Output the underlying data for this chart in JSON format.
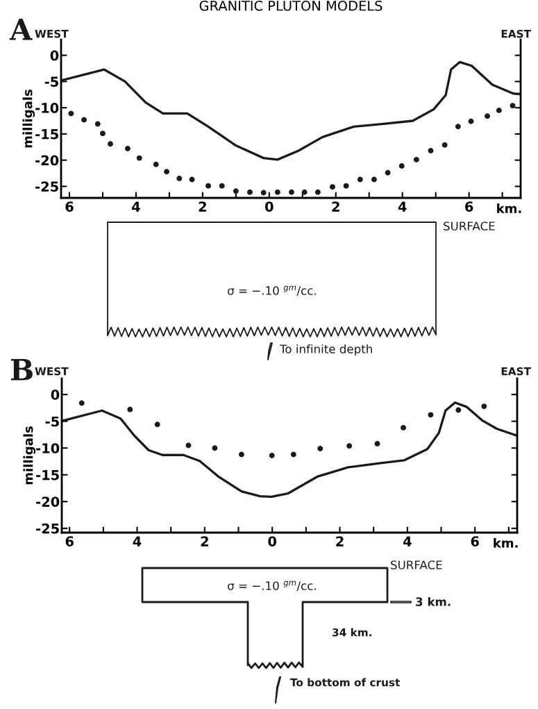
{
  "chart_data": [
    {
      "type": "line",
      "title": "GRANITIC PLUTON MODELS",
      "ylabel": "milligals",
      "xlabel": "km.",
      "annotations": [
        "A",
        "WEST",
        "EAST",
        "SURFACE",
        "σ = −.10 $^{gm}$/cc.",
        "To infinite depth"
      ],
      "xlim": [
        -6.25,
        7.55
      ],
      "ylim": [
        -27.2,
        3
      ],
      "xticks": [
        {
          "value": -6,
          "label": "6"
        },
        {
          "value": -5,
          "label": null
        },
        {
          "value": -4,
          "label": "4"
        },
        {
          "value": -3,
          "label": null
        },
        {
          "value": -2,
          "label": "2"
        },
        {
          "value": -1,
          "label": null
        },
        0,
        {
          "value": 1,
          "label": null
        },
        2,
        {
          "value": 3,
          "label": null
        },
        4,
        {
          "value": 5,
          "label": null
        },
        6,
        {
          "value": 7,
          "label": null
        }
      ],
      "yticks": [
        0,
        -5,
        -10,
        -15,
        -20,
        -25
      ],
      "series": [
        {
          "color": "#1a1a1a",
          "line_style": "solid",
          "marker": "none",
          "x": [
            -6.25,
            -4.96,
            -4.33,
            -3.71,
            -3.19,
            -2.46,
            -1.83,
            -1.0,
            -0.17,
            0.25,
            0.88,
            1.6,
            2.54,
            3.38,
            4.31,
            4.94,
            5.3,
            5.46,
            5.72,
            6.08,
            6.7,
            7.33,
            7.54
          ],
          "values": [
            -4.8,
            -2.7,
            -5.0,
            -9.0,
            -11.1,
            -11.1,
            -13.6,
            -17.2,
            -19.6,
            -19.9,
            -18.2,
            -15.6,
            -13.6,
            -13.1,
            -12.5,
            -10.3,
            -7.6,
            -2.7,
            -1.3,
            -2.0,
            -5.6,
            -7.3,
            -7.4
          ]
        },
        {
          "type": "scatter",
          "color": "#1a1a1a",
          "marker": "circle",
          "x": [
            -5.95,
            -5.56,
            -5.15,
            -5.0,
            -4.77,
            -4.25,
            -3.9,
            -3.4,
            -3.08,
            -2.7,
            -2.32,
            -1.83,
            -1.42,
            -1.0,
            -0.58,
            -0.17,
            0.25,
            0.67,
            1.06,
            1.46,
            1.9,
            2.31,
            2.73,
            3.15,
            3.56,
            3.98,
            4.42,
            4.85,
            5.27,
            5.67,
            6.06,
            6.55,
            6.9,
            7.31
          ],
          "values": [
            -11.1,
            -12.3,
            -13.1,
            -14.9,
            -16.9,
            -17.8,
            -19.6,
            -20.8,
            -22.2,
            -23.5,
            -23.7,
            -24.9,
            -24.9,
            -25.9,
            -26.1,
            -26.2,
            -26.1,
            -26.1,
            -26.1,
            -26.1,
            -25.1,
            -24.9,
            -23.7,
            -23.7,
            -22.4,
            -21.1,
            -19.9,
            -18.2,
            -17.1,
            -13.6,
            -12.6,
            -11.6,
            -10.5,
            -9.6
          ]
        }
      ]
    },
    {
      "type": "line",
      "ylabel": "milligals",
      "xlabel": "km.",
      "annotations": [
        "B",
        "WEST",
        "EAST",
        "SURFACE",
        "σ = −.10 $^{gm}$/cc.",
        "3 km.",
        "34 km.",
        "To bottom of crust"
      ],
      "xlim": [
        -6.23,
        7.25
      ],
      "ylim": [
        -25.8,
        3
      ],
      "xticks": [
        {
          "value": -6,
          "label": "6"
        },
        {
          "value": -5,
          "label": null
        },
        {
          "value": -4,
          "label": "4"
        },
        {
          "value": -3,
          "label": null
        },
        {
          "value": -2,
          "label": "2"
        },
        {
          "value": -1,
          "label": null
        },
        0,
        {
          "value": 1,
          "label": null
        },
        2,
        {
          "value": 3,
          "label": null
        },
        4,
        {
          "value": 5,
          "label": null
        },
        6,
        {
          "value": 7,
          "label": null
        }
      ],
      "yticks": [
        0,
        -5,
        -10,
        -15,
        -20,
        -25
      ],
      "series": [
        {
          "color": "#1a1a1a",
          "line_style": "solid",
          "marker": "none",
          "x": [
            -6.2,
            -5.04,
            -4.49,
            -4.08,
            -3.66,
            -3.25,
            -2.63,
            -2.15,
            -1.6,
            -0.91,
            -0.36,
            -0.02,
            0.46,
            1.35,
            2.25,
            3.21,
            3.9,
            4.59,
            4.93,
            5.13,
            5.41,
            5.75,
            6.23,
            6.65,
            7.25
          ],
          "values": [
            -4.9,
            -3.0,
            -4.5,
            -7.7,
            -10.4,
            -11.3,
            -11.3,
            -12.4,
            -15.3,
            -18.1,
            -19.0,
            -19.1,
            -18.5,
            -15.3,
            -13.6,
            -12.8,
            -12.3,
            -10.2,
            -7.2,
            -3.0,
            -1.5,
            -2.3,
            -4.9,
            -6.4,
            -7.7
          ]
        },
        {
          "type": "scatter",
          "color": "#1a1a1a",
          "marker": "circle",
          "x": [
            -5.64,
            -4.21,
            -3.4,
            -2.48,
            -1.7,
            -0.91,
            -0.01,
            0.63,
            1.42,
            2.28,
            3.11,
            3.88,
            4.69,
            5.51,
            6.27
          ],
          "values": [
            -1.6,
            -2.8,
            -5.6,
            -9.5,
            -10.0,
            -11.2,
            -11.4,
            -11.2,
            -10.1,
            -9.6,
            -9.2,
            -6.2,
            -3.8,
            -2.9,
            -2.2
          ]
        }
      ]
    }
  ]
}
